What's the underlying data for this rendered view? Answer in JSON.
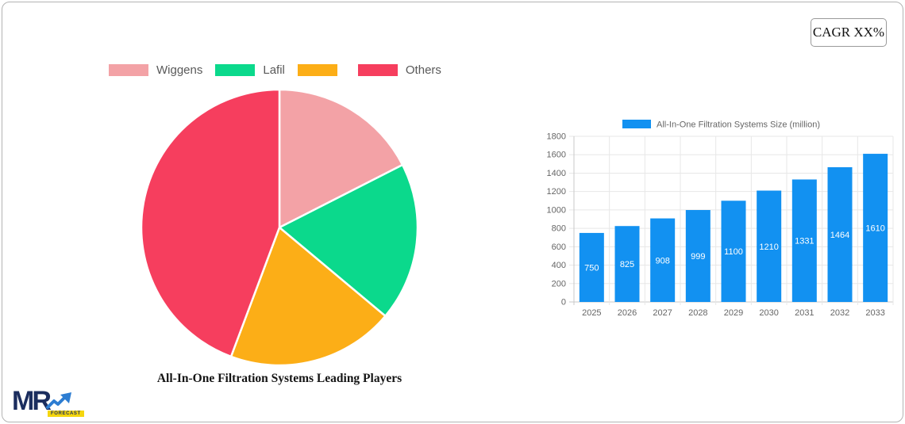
{
  "cagr_button": {
    "label": "CAGR XX%"
  },
  "logo": {
    "mr": "MR",
    "forecast": "FORECAST",
    "navy": "#1b2d5e",
    "arrow_blue": "#2d7dd2",
    "yellow": "#f5d60e"
  },
  "pie_section": {
    "title": "All-In-One Filtration Systems Leading Players"
  },
  "bar_section": {
    "legend_label": "All-In-One Filtration Systems Size (million)",
    "bar_color": "#1291f1"
  },
  "chart_data": [
    {
      "type": "pie",
      "title": "All-In-One Filtration Systems Leading Players",
      "labels": [
        "Wiggens",
        "Lafil",
        "",
        "Others"
      ],
      "values": [
        17.5,
        18.6,
        19.6,
        44.3
      ],
      "unit": "percent (estimated from slice angles)",
      "colors": [
        "#f3a2a6",
        "#0bd98c",
        "#fcae17",
        "#f63e5e"
      ],
      "start_angle_deg": 0,
      "direction": "clockwise",
      "legend_position": "top",
      "slice_border_color": "#ffffff"
    },
    {
      "type": "bar",
      "categories": [
        "2025",
        "2026",
        "2027",
        "2028",
        "2029",
        "2030",
        "2031",
        "2032",
        "2033"
      ],
      "values": [
        750,
        825,
        908,
        999,
        1100,
        1210,
        1331,
        1464,
        1610
      ],
      "title": "",
      "legend": "All-In-One Filtration Systems Size (million)",
      "xlabel": "",
      "ylabel": "",
      "ylim": [
        0,
        1800
      ],
      "ytick_step": 200,
      "grid": true,
      "bar_color": "#1291f1",
      "value_label_style": "white-inside-bar",
      "axis_text_color": "#666666"
    }
  ]
}
